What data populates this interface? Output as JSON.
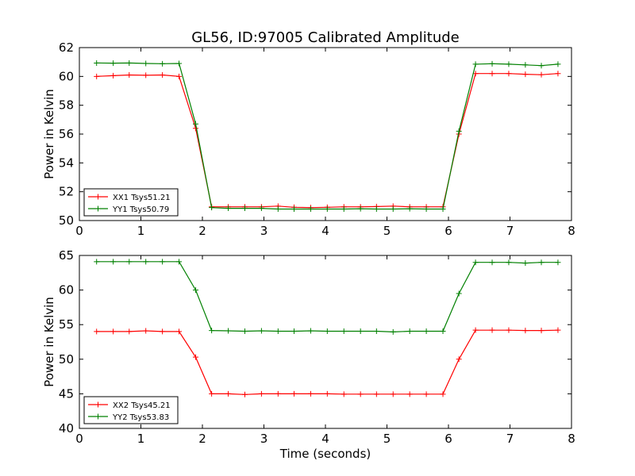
{
  "figure": {
    "title": "GL56, ID:97005 Calibrated Amplitude",
    "xlabel": "Time (seconds)"
  },
  "chart_data": [
    {
      "type": "line",
      "ylabel": "Power in Kelvin",
      "xlim": [
        0,
        8
      ],
      "ylim": [
        50,
        62
      ],
      "xticks": [
        0,
        1,
        2,
        3,
        4,
        5,
        6,
        7,
        8
      ],
      "yticks": [
        50,
        52,
        54,
        56,
        58,
        60,
        62
      ],
      "legend_position": "lower-left",
      "x": [
        0.28,
        0.55,
        0.81,
        1.08,
        1.35,
        1.62,
        1.89,
        2.15,
        2.42,
        2.69,
        2.96,
        3.23,
        3.49,
        3.76,
        4.03,
        4.3,
        4.57,
        4.83,
        5.1,
        5.37,
        5.64,
        5.91,
        6.17,
        6.44,
        6.71,
        6.98,
        7.25,
        7.51,
        7.78
      ],
      "series": [
        {
          "name": "XX1 Tsys51.21",
          "color": "#ff0000",
          "values": [
            60.0,
            60.05,
            60.1,
            60.08,
            60.1,
            60.0,
            56.4,
            50.95,
            50.95,
            50.95,
            50.95,
            51.0,
            50.92,
            50.9,
            50.92,
            50.95,
            50.95,
            50.97,
            51.0,
            50.95,
            50.95,
            50.95,
            56.0,
            60.2,
            60.2,
            60.2,
            60.15,
            60.12,
            60.2
          ]
        },
        {
          "name": "YY1 Tsys50.79",
          "color": "#008000",
          "values": [
            60.93,
            60.92,
            60.93,
            60.9,
            60.88,
            60.9,
            56.7,
            50.9,
            50.85,
            50.85,
            50.85,
            50.8,
            50.8,
            50.8,
            50.8,
            50.8,
            50.82,
            50.8,
            50.8,
            50.82,
            50.8,
            50.8,
            56.2,
            60.85,
            60.88,
            60.85,
            60.8,
            60.75,
            60.85
          ]
        }
      ]
    },
    {
      "type": "line",
      "ylabel": "Power in Kelvin",
      "xlim": [
        0,
        8
      ],
      "ylim": [
        40,
        65
      ],
      "xticks": [
        0,
        1,
        2,
        3,
        4,
        5,
        6,
        7,
        8
      ],
      "yticks": [
        40,
        45,
        50,
        55,
        60,
        65
      ],
      "legend_position": "lower-left",
      "x": [
        0.28,
        0.55,
        0.81,
        1.08,
        1.35,
        1.62,
        1.89,
        2.15,
        2.42,
        2.69,
        2.96,
        3.23,
        3.49,
        3.76,
        4.03,
        4.3,
        4.57,
        4.83,
        5.1,
        5.37,
        5.64,
        5.91,
        6.17,
        6.44,
        6.71,
        6.98,
        7.25,
        7.51,
        7.78
      ],
      "series": [
        {
          "name": "XX2 Tsys45.21",
          "color": "#ff0000",
          "values": [
            54.0,
            54.0,
            54.0,
            54.1,
            54.0,
            54.0,
            50.3,
            45.0,
            45.0,
            44.9,
            45.0,
            45.0,
            45.0,
            45.0,
            45.0,
            44.95,
            44.95,
            44.95,
            44.95,
            44.95,
            44.95,
            44.95,
            50.0,
            54.2,
            54.2,
            54.2,
            54.15,
            54.15,
            54.2
          ]
        },
        {
          "name": "YY2 Tsys53.83",
          "color": "#008000",
          "values": [
            64.1,
            64.1,
            64.1,
            64.1,
            64.1,
            64.1,
            60.0,
            54.15,
            54.1,
            54.05,
            54.1,
            54.05,
            54.05,
            54.1,
            54.05,
            54.05,
            54.05,
            54.05,
            53.95,
            54.05,
            54.05,
            54.05,
            59.5,
            64.0,
            64.0,
            64.0,
            63.9,
            64.0,
            64.0
          ]
        }
      ]
    }
  ]
}
